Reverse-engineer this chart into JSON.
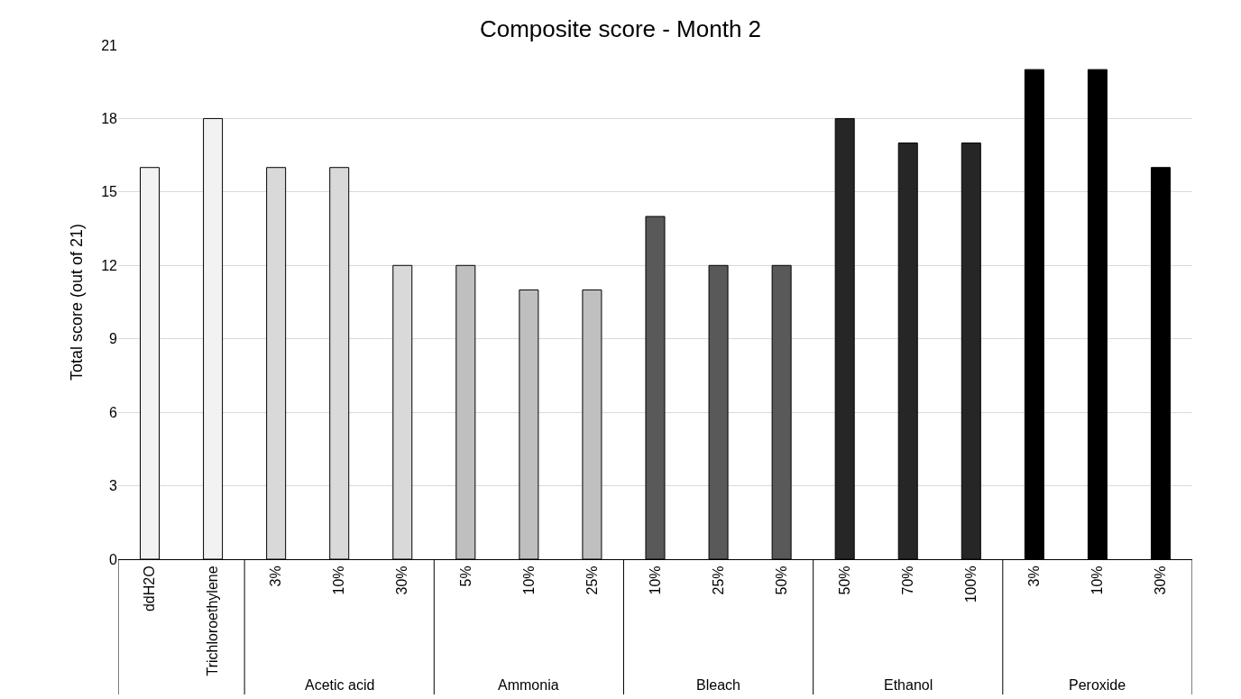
{
  "chart_data": {
    "type": "bar",
    "title": "Composite score - Month 2",
    "ylabel": "Total score (out of 21)",
    "categories": [
      "ddH2O",
      "Trichloroethylene",
      "3%",
      "10%",
      "30%",
      "5%",
      "10%",
      "25%",
      "10%",
      "25%",
      "50%",
      "50%",
      "70%",
      "100%",
      "3%",
      "10%",
      "30%"
    ],
    "values": [
      16,
      18,
      16,
      16,
      12,
      12,
      11,
      11,
      14,
      12,
      12,
      18,
      17,
      17,
      20,
      20,
      16
    ],
    "colors": [
      "#f2f2f2",
      "#f2f2f2",
      "#d9d9d9",
      "#d9d9d9",
      "#d9d9d9",
      "#bfbfbf",
      "#bfbfbf",
      "#bfbfbf",
      "#595959",
      "#595959",
      "#595959",
      "#262626",
      "#262626",
      "#262626",
      "#000000",
      "#000000",
      "#000000"
    ],
    "annotations": [
      "Acetic acid",
      "Ammonia",
      "Bleach",
      "Ethanol",
      "Peroxide"
    ],
    "ylim": [
      0,
      21
    ],
    "yticks": [
      0,
      3,
      6,
      9,
      12,
      15,
      18,
      21
    ],
    "grid": "y"
  }
}
